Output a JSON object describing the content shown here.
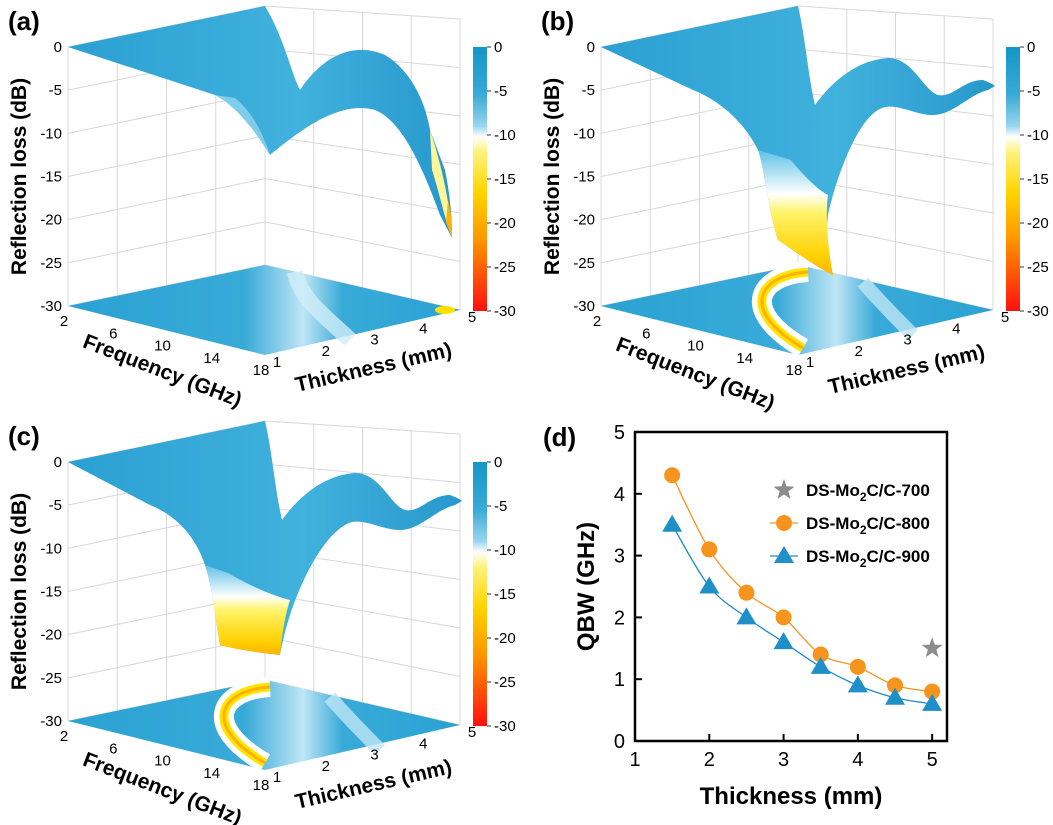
{
  "panels": [
    {
      "label": "(a)",
      "zlabel": "Reflection loss (dB)",
      "z_ticks": [
        "0",
        "-5",
        "-10",
        "-15",
        "-20",
        "-25",
        "-30"
      ],
      "freq_label": "Frequency (GHz)",
      "freq_ticks": [
        "2",
        "6",
        "10",
        "14",
        "18"
      ],
      "thick_label": "Thickness (mm)",
      "thick_ticks": [
        "1",
        "2",
        "3",
        "4",
        "5"
      ],
      "colorbar_ticks": [
        "0",
        "-5",
        "-10",
        "-15",
        "-20",
        "-25",
        "-30"
      ],
      "min_rl_db": -22
    },
    {
      "label": "(b)",
      "zlabel": "Reflection loss (dB)",
      "z_ticks": [
        "0",
        "-5",
        "-10",
        "-15",
        "-20",
        "-25",
        "-30"
      ],
      "freq_label": "Frequency (GHz)",
      "freq_ticks": [
        "2",
        "6",
        "10",
        "14",
        "18"
      ],
      "thick_label": "Thickness (mm)",
      "thick_ticks": [
        "1",
        "2",
        "3",
        "4",
        "5"
      ],
      "colorbar_ticks": [
        "0",
        "-5",
        "-10",
        "-15",
        "-20",
        "-25",
        "-30"
      ],
      "min_rl_db": -27
    },
    {
      "label": "(c)",
      "zlabel": "Reflection loss (dB)",
      "z_ticks": [
        "0",
        "-5",
        "-10",
        "-15",
        "-20",
        "-25",
        "-30"
      ],
      "freq_label": "Frequency (GHz)",
      "freq_ticks": [
        "2",
        "6",
        "10",
        "14",
        "18"
      ],
      "thick_label": "Thickness (mm)",
      "thick_ticks": [
        "1",
        "2",
        "3",
        "4",
        "5"
      ],
      "colorbar_ticks": [
        "0",
        "-5",
        "-10",
        "-15",
        "-20",
        "-25",
        "-30"
      ],
      "min_rl_db": -22
    }
  ],
  "chart_data": [
    {
      "type": "surface",
      "title": "(a)",
      "xlabel": "Frequency (GHz)",
      "ylabel": "Thickness (mm)",
      "zlabel": "Reflection loss (dB)",
      "xlim": [
        2,
        18
      ],
      "ylim": [
        1,
        5
      ],
      "zlim": [
        -30,
        0
      ],
      "min_rl": -22
    },
    {
      "type": "surface",
      "title": "(b)",
      "xlabel": "Frequency (GHz)",
      "ylabel": "Thickness (mm)",
      "zlabel": "Reflection loss (dB)",
      "xlim": [
        2,
        18
      ],
      "ylim": [
        1,
        5
      ],
      "zlim": [
        -30,
        0
      ],
      "min_rl": -27
    },
    {
      "type": "surface",
      "title": "(c)",
      "xlabel": "Frequency (GHz)",
      "ylabel": "Thickness (mm)",
      "zlabel": "Reflection loss (dB)",
      "xlim": [
        2,
        18
      ],
      "ylim": [
        1,
        5
      ],
      "zlim": [
        -30,
        0
      ],
      "min_rl": -22
    },
    {
      "type": "line",
      "title": "(d)",
      "panel_label": "(d)",
      "xlabel": "Thickness (mm)",
      "ylabel": "QBW (GHz)",
      "xlim": [
        1,
        5.2
      ],
      "ylim": [
        0,
        5
      ],
      "x_ticks": [
        "1",
        "2",
        "3",
        "4",
        "5"
      ],
      "y_ticks": [
        "0",
        "1",
        "2",
        "3",
        "4",
        "5"
      ],
      "series": [
        {
          "name": "DS-Mo2C/C-700",
          "label_main": "DS-Mo",
          "label_sub": "2",
          "label_rest": "C/C-700",
          "color": "#8c8c8c",
          "marker": "star",
          "line": false,
          "x": [
            5.0
          ],
          "y": [
            1.5
          ]
        },
        {
          "name": "DS-Mo2C/C-800",
          "label_main": "DS-Mo",
          "label_sub": "2",
          "label_rest": "C/C-800",
          "color": "#f7941d",
          "marker": "circle",
          "line": true,
          "x": [
            1.5,
            2.0,
            2.5,
            3.0,
            3.5,
            4.0,
            4.5,
            5.0
          ],
          "y": [
            4.3,
            3.1,
            2.4,
            2.0,
            1.4,
            1.2,
            0.9,
            0.8
          ]
        },
        {
          "name": "DS-Mo2C/C-900",
          "label_main": "DS-Mo",
          "label_sub": "2",
          "label_rest": "C/C-900",
          "color": "#1f8fc8",
          "marker": "triangle",
          "line": true,
          "x": [
            1.5,
            2.0,
            2.5,
            3.0,
            3.5,
            4.0,
            4.5,
            5.0
          ],
          "y": [
            3.5,
            2.5,
            2.0,
            1.6,
            1.2,
            0.9,
            0.7,
            0.6
          ]
        }
      ]
    }
  ]
}
